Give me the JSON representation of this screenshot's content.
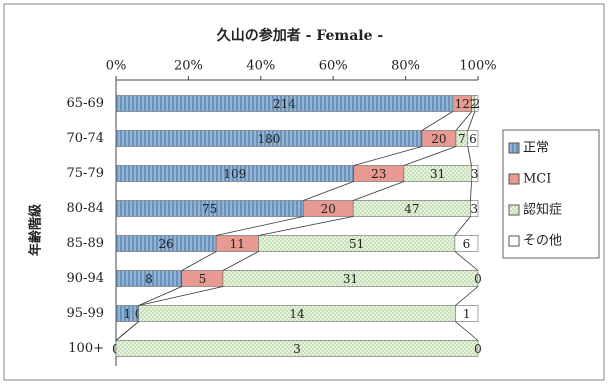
{
  "chart_data": {
    "type": "bar",
    "orientation": "horizontal",
    "stacked": true,
    "normalize": "percent",
    "title": "久山の参加者 - Female -",
    "y_label": "年齢階級",
    "categories": [
      "65-69",
      "70-74",
      "75-79",
      "80-84",
      "85-89",
      "90-94",
      "95-99",
      "100+"
    ],
    "series": [
      {
        "name": "正常",
        "color": "#8fb4d8",
        "values": [
          214,
          180,
          109,
          75,
          26,
          8,
          1,
          0
        ]
      },
      {
        "name": "MCI",
        "color": "#e89a92",
        "values": [
          12,
          20,
          23,
          20,
          11,
          5,
          0,
          0
        ]
      },
      {
        "name": "認知症",
        "color": "#e6f3dc",
        "values": [
          2,
          7,
          31,
          47,
          51,
          31,
          14,
          3
        ]
      },
      {
        "name": "その他",
        "color": "#ffffff",
        "values": [
          2,
          6,
          3,
          3,
          6,
          0,
          1,
          0
        ]
      }
    ],
    "xlim": [
      0,
      100
    ],
    "xticks": [
      {
        "value": 0,
        "label": "0%"
      },
      {
        "value": 20,
        "label": "20%"
      },
      {
        "value": 40,
        "label": "40%"
      },
      {
        "value": 60,
        "label": "60%"
      },
      {
        "value": 80,
        "label": "80%"
      },
      {
        "value": 100,
        "label": "100%"
      }
    ],
    "legend": "right"
  }
}
